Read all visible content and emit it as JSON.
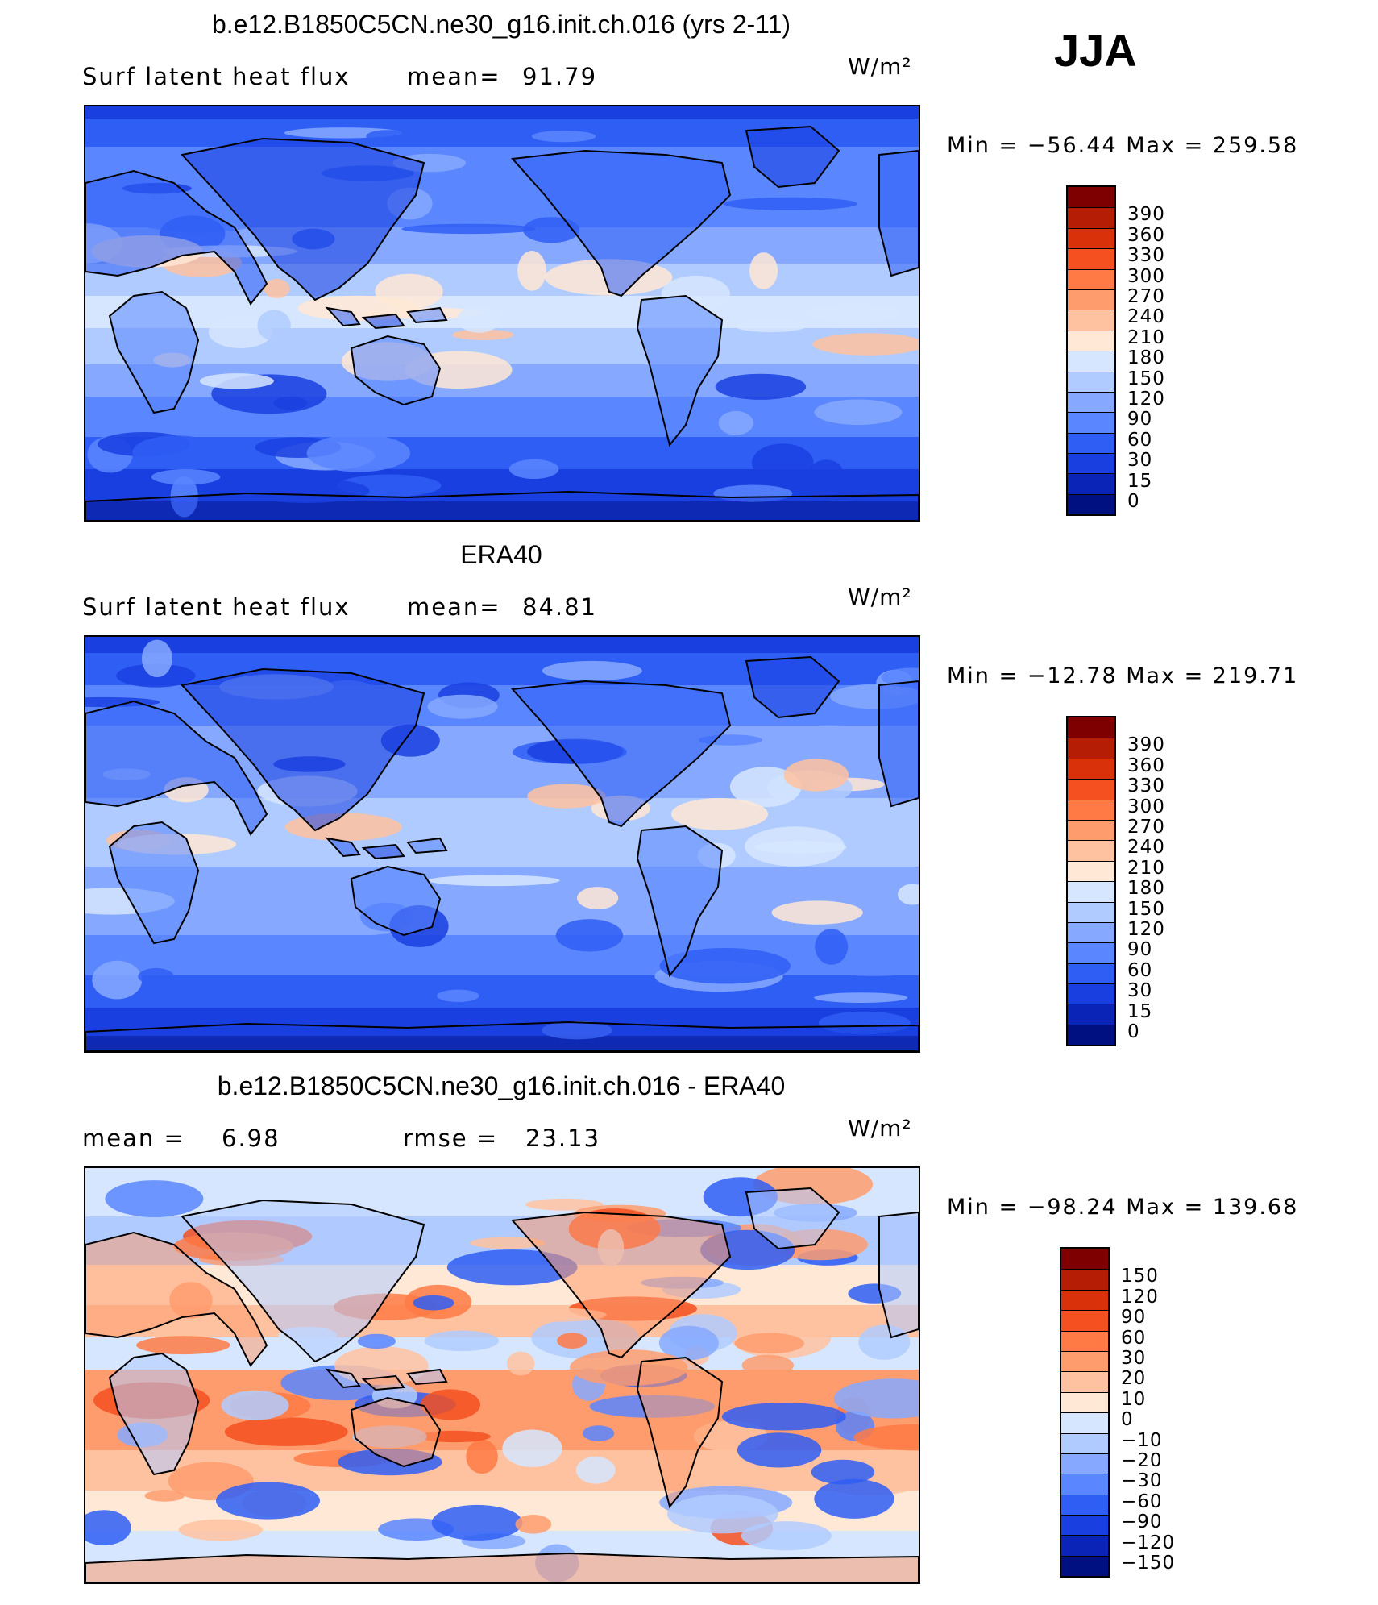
{
  "season": "JJA",
  "panels": [
    {
      "title": "b.e12.B1850C5CN.ne30_g16.init.ch.016 (yrs 2-11)",
      "left_label": "Surf latent heat flux",
      "stat1_label": "mean=",
      "stat1_value": "91.79",
      "stat2_label": "",
      "stat2_value": "",
      "units": "W/m²",
      "range_text": "Min = −56.44 Max = 259.58",
      "min": -56.44,
      "max": 259.58,
      "mean": 91.79,
      "colorbar": {
        "labels": [
          "390",
          "360",
          "330",
          "300",
          "270",
          "240",
          "210",
          "180",
          "150",
          "120",
          "90",
          "60",
          "30",
          "15",
          "0"
        ],
        "colors": [
          "#7f0000",
          "#b51e05",
          "#d9320a",
          "#f45020",
          "#ff7a45",
          "#ff9c6e",
          "#ffc2a0",
          "#ffe8d5",
          "#d6e6ff",
          "#b0cbff",
          "#86a9ff",
          "#5a86ff",
          "#2f5ef5",
          "#1a3fe0",
          "#0a24b8",
          "#001080"
        ]
      }
    },
    {
      "title": "ERA40",
      "left_label": "Surf latent heat flux",
      "stat1_label": "mean=",
      "stat1_value": "84.81",
      "stat2_label": "",
      "stat2_value": "",
      "units": "W/m²",
      "range_text": "Min = −12.78 Max = 219.71",
      "min": -12.78,
      "max": 219.71,
      "mean": 84.81,
      "colorbar": {
        "labels": [
          "390",
          "360",
          "330",
          "300",
          "270",
          "240",
          "210",
          "180",
          "150",
          "120",
          "90",
          "60",
          "30",
          "15",
          "0"
        ],
        "colors": [
          "#7f0000",
          "#b51e05",
          "#d9320a",
          "#f45020",
          "#ff7a45",
          "#ff9c6e",
          "#ffc2a0",
          "#ffe8d5",
          "#d6e6ff",
          "#b0cbff",
          "#86a9ff",
          "#5a86ff",
          "#2f5ef5",
          "#1a3fe0",
          "#0a24b8",
          "#001080"
        ]
      }
    },
    {
      "title": "b.e12.B1850C5CN.ne30_g16.init.ch.016 - ERA40",
      "left_label": "",
      "stat1_label": "mean =",
      "stat1_value": "6.98",
      "stat2_label": "rmse =",
      "stat2_value": "23.13",
      "units": "W/m²",
      "range_text": "Min = −98.24 Max = 139.68",
      "min": -98.24,
      "max": 139.68,
      "mean": 6.98,
      "colorbar": {
        "labels": [
          "150",
          "120",
          "90",
          "60",
          "30",
          "20",
          "10",
          "0",
          "−10",
          "−20",
          "−30",
          "−60",
          "−90",
          "−120",
          "−150"
        ],
        "colors": [
          "#7f0000",
          "#b51e05",
          "#d9320a",
          "#f45020",
          "#ff7a45",
          "#ff9c6e",
          "#ffc2a0",
          "#ffe8d5",
          "#d6e6ff",
          "#b0cbff",
          "#86a9ff",
          "#5a86ff",
          "#2f5ef5",
          "#1a3fe0",
          "#0a24b8",
          "#001080"
        ]
      }
    }
  ]
}
